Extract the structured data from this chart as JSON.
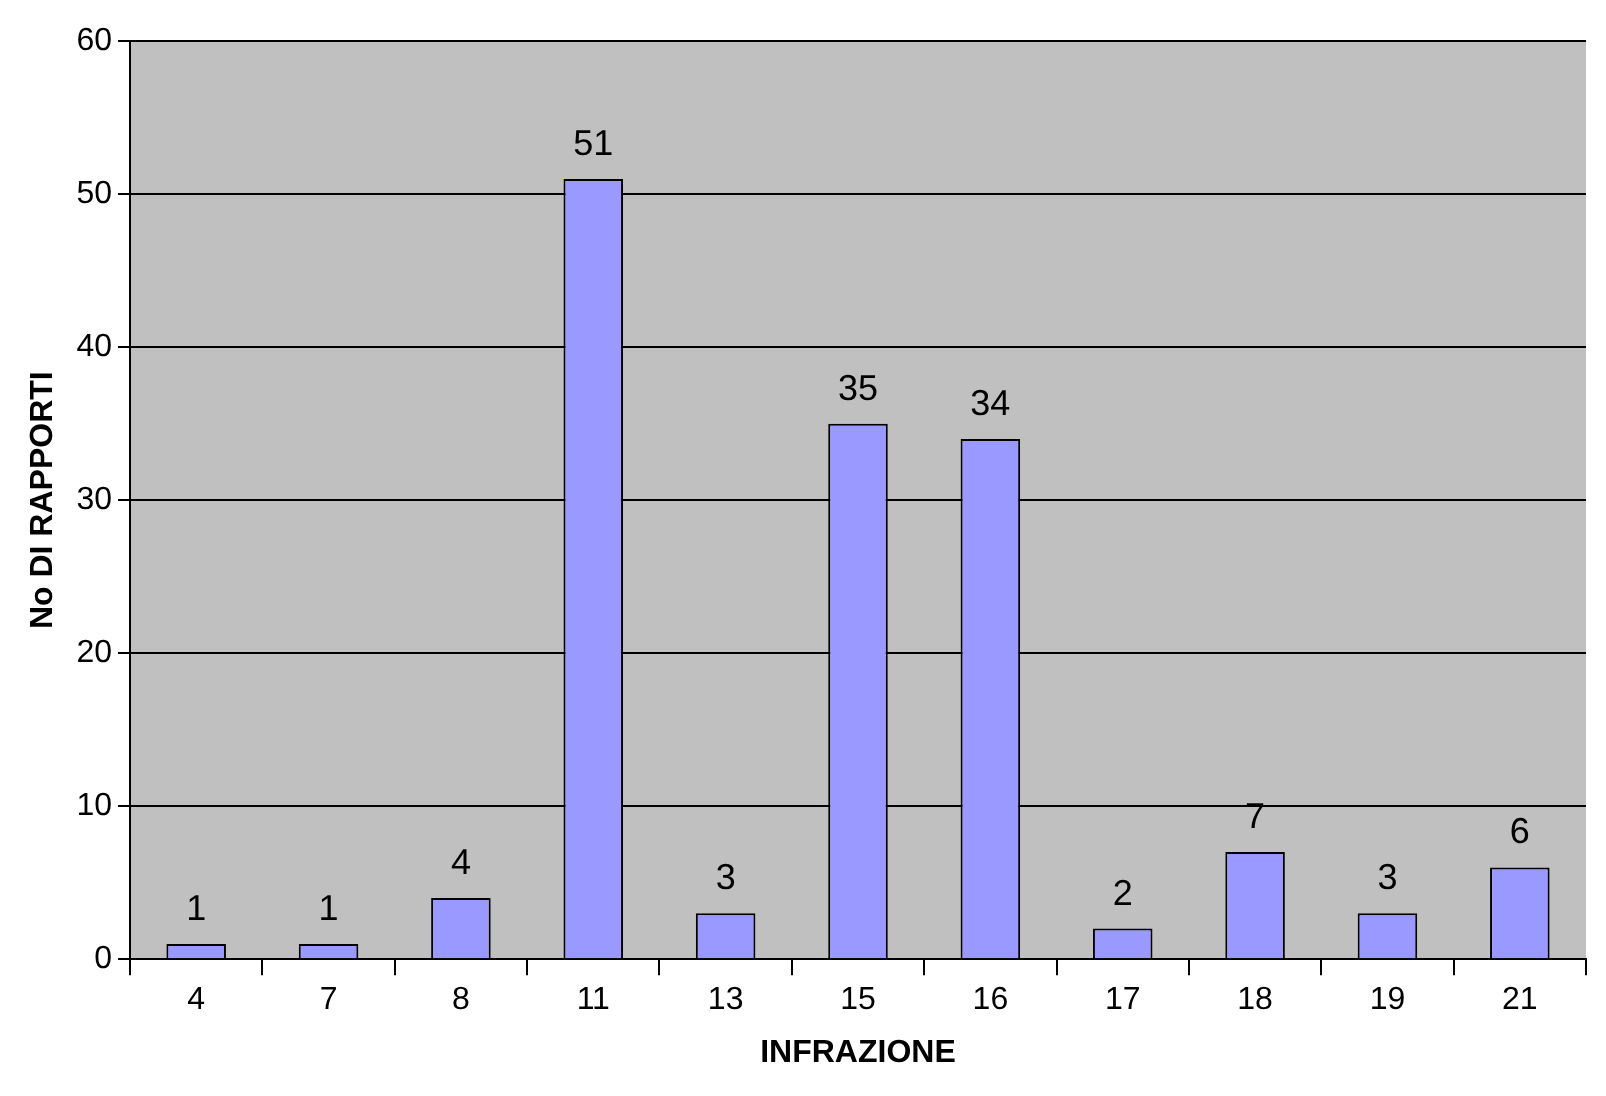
{
  "chart_data": {
    "type": "bar",
    "xlabel": "INFRAZIONE",
    "ylabel": "No DI RAPPORTI",
    "categories": [
      "4",
      "7",
      "8",
      "11",
      "13",
      "15",
      "16",
      "17",
      "18",
      "19",
      "21"
    ],
    "values": [
      1,
      1,
      4,
      51,
      3,
      35,
      34,
      2,
      7,
      3,
      6
    ],
    "color": "#9999ff",
    "ylim": [
      0,
      60
    ],
    "yticks": [
      0,
      10,
      20,
      30,
      40,
      50,
      60
    ],
    "grid": "y",
    "legend": false,
    "data_labels": true
  }
}
